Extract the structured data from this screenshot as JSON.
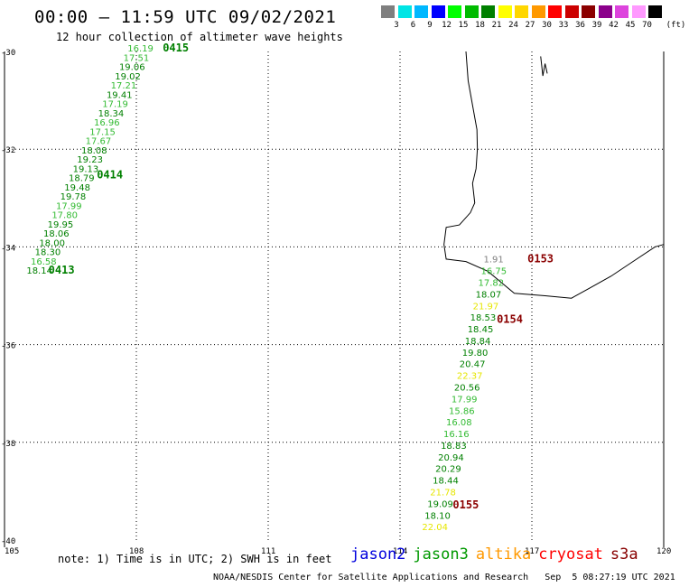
{
  "header": {
    "title": "00:00 – 11:59 UTC 09/02/2021",
    "subtitle": "12 hour collection of altimeter wave heights"
  },
  "scale": {
    "unit": "(ft)",
    "bins": [
      {
        "label": "3",
        "color": "#7f7f7f"
      },
      {
        "label": "6",
        "color": "#00e5e5"
      },
      {
        "label": "9",
        "color": "#00b8ff"
      },
      {
        "label": "12",
        "color": "#0000ff"
      },
      {
        "label": "15",
        "color": "#00ff00"
      },
      {
        "label": "18",
        "color": "#00bb00"
      },
      {
        "label": "21",
        "color": "#008000"
      },
      {
        "label": "24",
        "color": "#ffff00"
      },
      {
        "label": "27",
        "color": "#ffd700"
      },
      {
        "label": "30",
        "color": "#ff9900"
      },
      {
        "label": "33",
        "color": "#ff0000"
      },
      {
        "label": "36",
        "color": "#cc0000"
      },
      {
        "label": "39",
        "color": "#8b0000"
      },
      {
        "label": "42",
        "color": "#8b008b"
      },
      {
        "label": "45",
        "color": "#dd44dd"
      },
      {
        "label": "70",
        "color": "#ff99ff"
      },
      {
        "label": "",
        "color": "#000000"
      }
    ]
  },
  "axes": {
    "lat_labels": [
      "-30",
      "-32",
      "-34",
      "-36",
      "-38",
      "-40"
    ],
    "lon_labels": [
      "105",
      "108",
      "111",
      "114",
      "117",
      "120"
    ],
    "lat_range": [
      -40,
      -30
    ],
    "lon_range": [
      105,
      120
    ]
  },
  "tracks": [
    {
      "pass_times": [
        {
          "label": "0415",
          "lat": -30.0,
          "lon": 108.6
        },
        {
          "label": "0414",
          "lat": -32.6,
          "lon": 107.1
        },
        {
          "label": "0413",
          "lat": -34.55,
          "lon": 106.0
        }
      ],
      "values": [
        "16.19",
        "17.51",
        "19.06",
        "19.02",
        "17.21",
        "19.41",
        "17.19",
        "18.34",
        "16.96",
        "17.15",
        "17.67",
        "18.08",
        "19.23",
        "19.13",
        "18.79",
        "19.48",
        "19.78",
        "17.99",
        "17.80",
        "19.95",
        "18.06",
        "18.00",
        "18.30",
        "16.58",
        "18.14"
      ],
      "start": {
        "lat": -30.0,
        "lon": 107.8
      },
      "end": {
        "lat": -34.55,
        "lon": 105.5
      }
    },
    {
      "pass_times": [
        {
          "label": "0153",
          "lat": -34.32,
          "lon": 116.9
        },
        {
          "label": "0154",
          "lat": -35.55,
          "lon": 116.2
        },
        {
          "label": "0155",
          "lat": -39.35,
          "lon": 115.2
        }
      ],
      "values": [
        "1.91",
        "16.75",
        "17.82",
        "18.07",
        "21.97",
        "18.53",
        "18.45",
        "18.84",
        "19.80",
        "20.47",
        "22.37",
        "20.56",
        "17.99",
        "15.86",
        "16.08",
        "16.16",
        "18.83",
        "20.94",
        "20.29",
        "18.44",
        "21.78",
        "19.09",
        "18.10",
        "22.04"
      ],
      "start": {
        "lat": -34.32,
        "lon": 115.9
      },
      "end": {
        "lat": -39.8,
        "lon": 114.5
      }
    }
  ],
  "footer": {
    "note": "note: 1) Time is in UTC; 2) SWH is in feet",
    "satellites": [
      {
        "name": "jason2",
        "color": "#0000dd"
      },
      {
        "name": "jason3",
        "color": "#009900"
      },
      {
        "name": "altika",
        "color": "#ff9900"
      },
      {
        "name": "cryosat",
        "color": "#ff0000"
      },
      {
        "name": "s3a",
        "color": "#880000"
      }
    ],
    "credit": "NOAA/NESDIS Center for Satellite Applications and Research   Sep  5 08:27:19 UTC 2021"
  }
}
